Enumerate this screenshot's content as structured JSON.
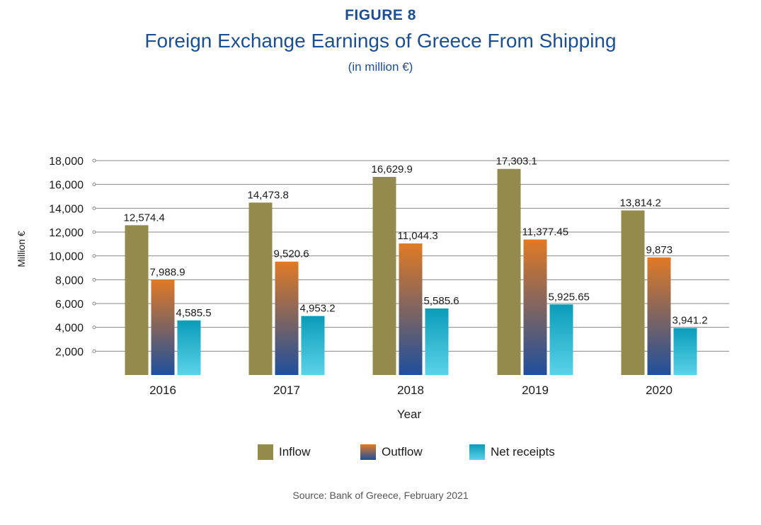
{
  "header": {
    "figure_label": "FIGURE 8",
    "title": "Foreign Exchange Earnings of Greece From Shipping",
    "subtitle": "(in million €)"
  },
  "source": "Source: Bank of Greece, February 2021",
  "colors": {
    "inflow": "#948a4c",
    "outflow_top": "#e07a25",
    "outflow_bottom": "#1e4f9c",
    "net_top": "#0a9cb8",
    "net_bottom": "#5bd2ea",
    "grid": "#888888",
    "title": "#1f4e8c"
  },
  "chart_data": {
    "type": "bar",
    "categories": [
      "2016",
      "2017",
      "2018",
      "2019",
      "2020"
    ],
    "series": [
      {
        "name": "Inflow",
        "values": [
          12574.4,
          14473.8,
          16629.9,
          17303.1,
          13814.2
        ],
        "labels": [
          "12,574.4",
          "14,473.8",
          "16,629.9",
          "17,303.1",
          "13,814.2"
        ]
      },
      {
        "name": "Outflow",
        "values": [
          7988.9,
          9520.6,
          11044.3,
          11377.45,
          9873
        ],
        "labels": [
          "7,988.9",
          "9,520.6",
          "11,044.3",
          "11,377.45",
          "9,873"
        ]
      },
      {
        "name": "Net receipts",
        "values": [
          4585.5,
          4953.2,
          5585.6,
          5925.65,
          3941.2
        ],
        "labels": [
          "4,585.5",
          "4,953.2",
          "5,585.6",
          "5,925.65",
          "3,941.2"
        ]
      }
    ],
    "xlabel": "Year",
    "ylabel": "Million €",
    "ylim": [
      0,
      18000
    ],
    "yticks": [
      2000,
      4000,
      6000,
      8000,
      10000,
      12000,
      14000,
      16000,
      18000
    ],
    "ytick_labels": [
      "2,000",
      "4,000",
      "6,000",
      "8,000",
      "10,000",
      "12,000",
      "14,000",
      "16,000",
      "18,000"
    ],
    "grid": true,
    "legend": "bottom"
  }
}
